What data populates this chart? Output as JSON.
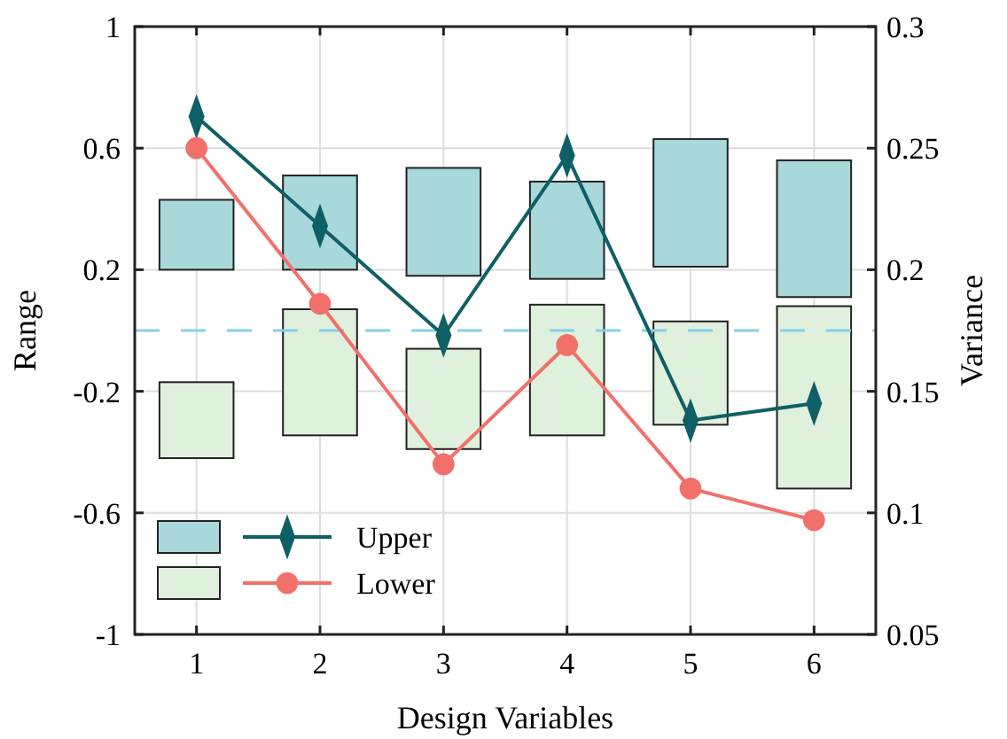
{
  "chart_data": {
    "type": "bar",
    "xlabel": "Design Variables",
    "ylabel": "Range",
    "y2label": "Variance",
    "categories": [
      "1",
      "2",
      "3",
      "4",
      "5",
      "6"
    ],
    "ylim": [
      -1,
      1
    ],
    "yticks": [
      -1,
      -0.6,
      -0.2,
      0.2,
      0.6,
      1
    ],
    "y2lim": [
      0.05,
      0.3
    ],
    "y2ticks": [
      0.05,
      0.1,
      0.15,
      0.2,
      0.25,
      0.3
    ],
    "grid": true,
    "legend": "bottom left",
    "ref_lines": [
      {
        "axis": "y",
        "value": 0,
        "color": "#87ceeb",
        "line_style": "dashed"
      }
    ],
    "series": [
      {
        "color": "#a8d8da",
        "base": [
          0.2,
          0.2,
          0.18,
          0.17,
          0.21,
          0.11
        ],
        "values": [
          0.23,
          0.31,
          0.355,
          0.32,
          0.42,
          0.45
        ]
      },
      {
        "color": "#dff0dc",
        "base": [
          -0.42,
          -0.345,
          -0.39,
          -0.345,
          -0.31,
          -0.52
        ],
        "values": [
          0.25,
          0.415,
          0.33,
          0.43,
          0.34,
          0.6
        ]
      },
      {
        "name": "Upper",
        "type": "line",
        "axis": "y2",
        "color": "#0f5f66",
        "marker": "diamond",
        "values": [
          0.263,
          0.218,
          0.173,
          0.247,
          0.138,
          0.145
        ]
      },
      {
        "name": "Lower",
        "type": "line",
        "axis": "y2",
        "color": "#f2706a",
        "marker": "circle",
        "values": [
          0.25,
          0.186,
          0.12,
          0.169,
          0.11,
          0.097
        ]
      }
    ]
  }
}
